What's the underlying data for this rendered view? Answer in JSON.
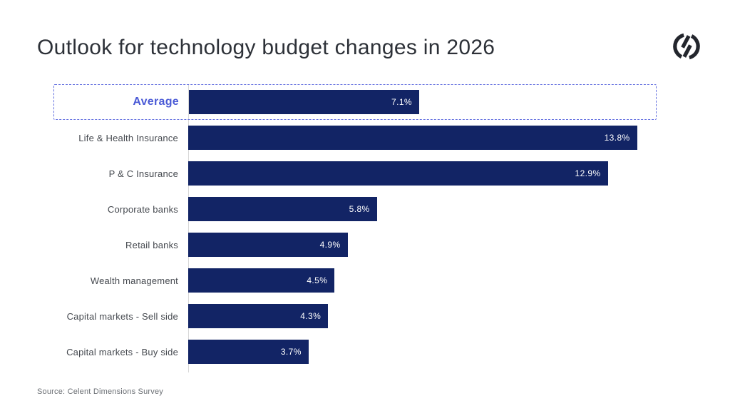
{
  "page": {
    "title": "Outlook for technology budget changes in 2026",
    "source": "Source: Celent Dimensions Survey",
    "logo": "celent-mark"
  },
  "colors": {
    "background": "#ffffff",
    "bar": "#122465",
    "accent_blue": "#4a5ad6",
    "highlight_border": "#6470e0",
    "title_text": "#2d3138",
    "label_text": "#45494f",
    "value_text": "#ffffff",
    "axis_line": "#d8d8d8",
    "source_text": "#6b6f74",
    "logo_ink": "#23262d"
  },
  "chart_data": {
    "type": "bar",
    "orientation": "horizontal",
    "title": "Outlook for technology budget changes in 2026",
    "categories": [
      "Average",
      "Life & Health Insurance",
      "P & C Insurance",
      "Corporate banks",
      "Retail banks",
      "Wealth management",
      "Capital markets - Sell side",
      "Capital markets - Buy side"
    ],
    "values": [
      7.1,
      13.8,
      12.9,
      5.8,
      4.9,
      4.5,
      4.3,
      3.7
    ],
    "value_labels": [
      "7.1%",
      "13.8%",
      "12.9%",
      "5.8%",
      "4.9%",
      "4.5%",
      "4.3%",
      "3.7%"
    ],
    "highlighted_category": "Average",
    "xlabel": "",
    "ylabel": "",
    "xlim": [
      0,
      14.4
    ],
    "grid": false,
    "legend": false,
    "value_labels_position": "inside-end",
    "source": "Source: Celent Dimensions Survey"
  }
}
